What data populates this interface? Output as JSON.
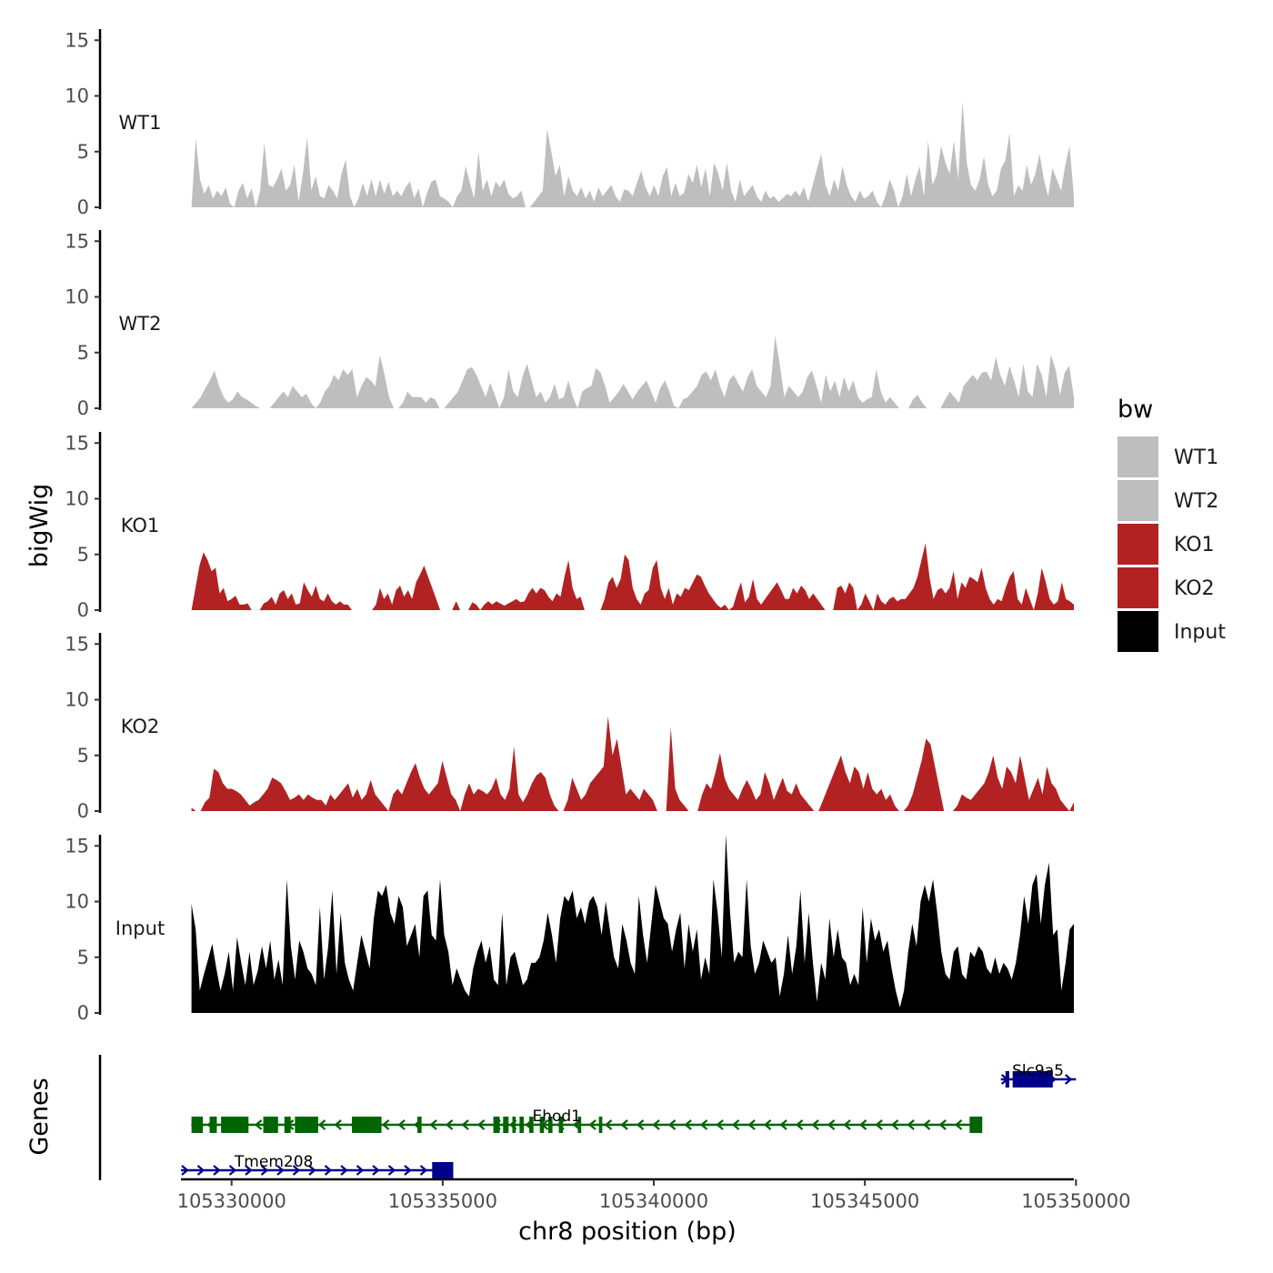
{
  "chart_data": {
    "type": "area",
    "title": "",
    "ylabel": "bigWig",
    "xlabel": "chr8 position (bp)",
    "xlim": [
      105328800,
      105349950
    ],
    "ylim": [
      0,
      16
    ],
    "y_ticks": [
      0,
      5,
      10,
      15
    ],
    "x_ticks": [
      105330000,
      105335000,
      105340000,
      105345000,
      105350000
    ],
    "x_tick_labels": [
      "105330000",
      "105335000",
      "105340000",
      "105345000",
      "105350000"
    ],
    "legend": {
      "title": "bw",
      "entries": [
        {
          "label": "WT1",
          "color": "#bebebe"
        },
        {
          "label": "WT2",
          "color": "#bebebe"
        },
        {
          "label": "KO1",
          "color": "#b22222"
        },
        {
          "label": "KO2",
          "color": "#b22222"
        },
        {
          "label": "Input",
          "color": "#000000"
        }
      ]
    },
    "data_x_start": 105329050,
    "data_x_end": 105349950,
    "series": [
      {
        "name": "WT1",
        "color": "#bebebe",
        "values": [
          0.0,
          6.2,
          2.5,
          1.2,
          2.0,
          0.8,
          1.5,
          1.0,
          1.8,
          0.3,
          0.0,
          1.5,
          2.2,
          0.8,
          1.7,
          0.0,
          1.4,
          5.8,
          2.0,
          1.8,
          2.5,
          3.5,
          1.5,
          2.0,
          3.8,
          0.5,
          3.0,
          6.3,
          1.5,
          2.8,
          1.0,
          0.8,
          2.0,
          1.5,
          0.8,
          3.0,
          4.3,
          1.0,
          0.0,
          0.8,
          2.2,
          1.0,
          2.5,
          1.0,
          2.5,
          1.2,
          2.3,
          1.0,
          1.5,
          1.0,
          1.8,
          2.3,
          0.8,
          1.7,
          0.0,
          1.3,
          2.3,
          2.5,
          1.0,
          0.8,
          0.5,
          0.0,
          1.0,
          1.5,
          3.7,
          2.2,
          0.8,
          5.0,
          1.5,
          2.5,
          1.0,
          2.3,
          1.8,
          2.5,
          1.2,
          0.8,
          1.0,
          1.5,
          0.0,
          0.0,
          0.5,
          1.0,
          1.5,
          7.0,
          5.0,
          2.8,
          3.8,
          1.0,
          2.8,
          1.5,
          1.0,
          1.8,
          0.8,
          1.5,
          0.5,
          1.8,
          1.0,
          1.5,
          2.0,
          1.0,
          0.5,
          1.6,
          1.5,
          1.0,
          2.2,
          3.3,
          1.8,
          1.0,
          2.0,
          1.0,
          2.8,
          3.6,
          1.0,
          2.2,
          1.0,
          1.3,
          3.0,
          2.2,
          3.8,
          1.8,
          3.5,
          1.0,
          4.0,
          3.0,
          1.5,
          4.0,
          1.5,
          0.5,
          2.5,
          1.0,
          1.5,
          2.0,
          1.0,
          0.5,
          1.5,
          0.8,
          1.0,
          0.5,
          0.8,
          1.2,
          1.0,
          1.5,
          1.0,
          1.8,
          0.5,
          2.0,
          3.4,
          4.8,
          2.0,
          1.0,
          2.5,
          1.5,
          3.7,
          2.0,
          1.0,
          0.5,
          1.5,
          0.8,
          1.0,
          1.5,
          0.5,
          0.0,
          1.0,
          2.5,
          1.5,
          0.0,
          1.0,
          3.0,
          1.0,
          2.5,
          3.7,
          1.0,
          6.0,
          2.0,
          3.0,
          5.5,
          4.0,
          3.0,
          6.0,
          2.5,
          9.5,
          4.0,
          2.0,
          1.5,
          2.5,
          4.6,
          2.0,
          1.0,
          1.5,
          3.5,
          4.2,
          6.7,
          1.0,
          2.0,
          1.5,
          3.8,
          2.0,
          3.0,
          4.8,
          2.5,
          1.0,
          3.5,
          2.5,
          1.5,
          3.8,
          5.5,
          1.0
        ]
      },
      {
        "name": "WT2",
        "color": "#bebebe",
        "values": [
          0.0,
          0.5,
          1.0,
          1.8,
          2.5,
          3.4,
          2.0,
          1.0,
          0.5,
          0.8,
          1.5,
          1.0,
          0.8,
          0.5,
          0.2,
          0.0,
          0.0,
          0.0,
          0.5,
          1.0,
          1.5,
          1.0,
          2.0,
          1.5,
          1.0,
          1.3,
          0.5,
          0.0,
          0.5,
          1.5,
          2.0,
          3.0,
          2.5,
          3.5,
          3.0,
          3.5,
          1.0,
          2.0,
          2.8,
          2.5,
          2.0,
          4.8,
          3.0,
          1.0,
          0.0,
          0.0,
          0.5,
          1.5,
          1.0,
          1.0,
          1.0,
          0.5,
          1.0,
          0.8,
          0.0,
          0.0,
          0.5,
          1.0,
          1.5,
          2.5,
          3.5,
          3.7,
          3.0,
          2.0,
          1.0,
          2.3,
          1.2,
          0.0,
          1.0,
          3.5,
          1.5,
          1.0,
          2.8,
          4.0,
          2.5,
          1.0,
          1.5,
          0.5,
          1.0,
          2.2,
          0.8,
          1.0,
          2.5,
          1.0,
          0.0,
          1.5,
          1.8,
          2.0,
          3.6,
          3.2,
          2.0,
          0.5,
          1.0,
          1.5,
          2.2,
          1.5,
          0.8,
          1.5,
          2.0,
          2.5,
          1.5,
          0.5,
          1.8,
          2.5,
          1.5,
          0.2,
          0.0,
          0.8,
          1.0,
          1.5,
          2.0,
          3.0,
          3.3,
          2.5,
          3.5,
          2.0,
          1.0,
          2.5,
          3.0,
          2.2,
          1.5,
          2.8,
          3.5,
          2.0,
          1.5,
          1.0,
          2.0,
          6.5,
          4.0,
          1.0,
          2.0,
          1.5,
          1.0,
          1.5,
          2.8,
          3.4,
          2.0,
          0.5,
          3.0,
          1.5,
          2.5,
          1.0,
          2.8,
          1.5,
          2.5,
          1.0,
          0.5,
          0.8,
          1.0,
          3.5,
          1.5,
          0.5,
          1.0,
          0.5,
          0.0,
          0.0,
          0.0,
          0.8,
          1.2,
          0.5,
          0.0,
          0.0,
          0.0,
          0.0,
          0.8,
          1.5,
          1.0,
          0.5,
          2.0,
          2.5,
          3.0,
          2.5,
          3.2,
          3.3,
          2.5,
          4.6,
          3.0,
          2.0,
          3.8,
          2.5,
          1.0,
          4.0,
          1.5,
          1.0,
          4.0,
          3.0,
          1.0,
          4.8,
          3.5,
          1.2,
          3.2,
          3.8,
          1.0
        ]
      },
      {
        "name": "KO1",
        "color": "#b22222",
        "values": [
          0.0,
          2.0,
          4.0,
          5.2,
          4.5,
          3.5,
          3.8,
          1.5,
          2.0,
          0.8,
          1.0,
          1.3,
          0.5,
          0.5,
          0.6,
          0.0,
          0.0,
          0.0,
          0.6,
          0.8,
          1.2,
          0.5,
          1.5,
          1.8,
          1.0,
          1.5,
          0.5,
          0.6,
          2.5,
          1.8,
          1.2,
          2.2,
          1.0,
          0.8,
          1.5,
          0.8,
          0.5,
          0.8,
          0.5,
          0.5,
          0.0,
          0.0,
          0.0,
          0.0,
          0.0,
          0.0,
          0.5,
          2.0,
          1.0,
          1.5,
          0.5,
          1.8,
          2.2,
          1.2,
          1.8,
          1.0,
          2.5,
          3.2,
          4.0,
          3.0,
          2.0,
          1.0,
          0.0,
          0.0,
          0.0,
          0.0,
          0.8,
          0.0,
          0.0,
          0.0,
          0.7,
          0.5,
          0.0,
          0.5,
          0.8,
          0.5,
          0.8,
          0.6,
          0.4,
          0.6,
          0.8,
          1.0,
          0.7,
          0.8,
          1.5,
          2.0,
          1.5,
          2.0,
          1.8,
          1.2,
          0.8,
          1.5,
          1.2,
          3.0,
          4.5,
          2.0,
          1.0,
          1.2,
          0.0,
          0.0,
          0.0,
          0.0,
          0.0,
          1.0,
          2.5,
          3.0,
          2.0,
          2.8,
          5.0,
          4.5,
          2.0,
          1.0,
          0.5,
          1.5,
          1.8,
          3.8,
          4.5,
          2.0,
          1.0,
          2.0,
          0.5,
          1.5,
          1.2,
          2.0,
          1.8,
          2.5,
          3.2,
          3.0,
          2.2,
          1.5,
          1.0,
          0.5,
          0.2,
          0.5,
          0.0,
          0.3,
          1.5,
          2.5,
          0.7,
          1.2,
          2.8,
          1.0,
          0.5,
          1.0,
          1.5,
          2.0,
          2.5,
          1.8,
          1.0,
          1.0,
          2.0,
          1.5,
          2.2,
          1.8,
          1.0,
          1.5,
          1.0,
          0.5,
          0.0,
          0.0,
          0.0,
          2.0,
          2.2,
          1.5,
          2.5,
          2.0,
          0.0,
          0.5,
          1.5,
          0.8,
          0.0,
          1.5,
          0.8,
          0.5,
          1.0,
          1.2,
          0.8,
          1.0,
          1.0,
          1.5,
          2.0,
          3.0,
          4.5,
          6.0,
          3.0,
          1.0,
          1.8,
          2.0,
          1.5,
          2.0,
          3.5,
          1.0,
          2.5,
          2.0,
          3.0,
          2.8,
          2.5,
          3.8,
          2.0,
          1.0,
          0.5,
          1.0,
          0.8,
          2.0,
          3.0,
          3.5,
          1.0,
          0.5,
          2.0,
          1.0,
          0.0,
          1.5,
          3.8,
          2.5,
          1.0,
          0.5,
          0.8,
          2.5,
          1.0,
          0.8,
          0.5
        ]
      },
      {
        "name": "KO2",
        "color": "#b22222",
        "values": [
          0.3,
          0.0,
          0.0,
          0.8,
          1.2,
          3.8,
          3.5,
          2.5,
          2.0,
          2.0,
          1.8,
          1.5,
          1.0,
          0.5,
          0.8,
          1.0,
          1.5,
          2.0,
          3.0,
          2.8,
          2.5,
          1.8,
          1.0,
          1.2,
          1.5,
          1.0,
          1.5,
          1.2,
          1.0,
          1.0,
          0.5,
          1.5,
          1.0,
          1.5,
          2.0,
          2.5,
          1.2,
          2.0,
          1.0,
          1.5,
          2.8,
          1.5,
          1.0,
          0.5,
          0.0,
          1.5,
          2.0,
          1.5,
          2.5,
          3.5,
          4.3,
          3.0,
          2.0,
          1.5,
          2.0,
          2.5,
          4.5,
          3.0,
          1.5,
          1.0,
          0.0,
          1.5,
          2.5,
          1.5,
          2.0,
          1.8,
          1.5,
          2.0,
          3.0,
          1.5,
          1.0,
          2.0,
          5.8,
          1.5,
          0.8,
          1.5,
          2.5,
          3.2,
          3.5,
          3.0,
          1.5,
          0.5,
          0.0,
          0.0,
          1.0,
          3.0,
          2.0,
          1.0,
          1.5,
          2.5,
          3.0,
          3.5,
          4.0,
          8.5,
          5.0,
          6.5,
          4.0,
          1.5,
          2.0,
          1.5,
          1.0,
          2.0,
          1.5,
          1.0,
          0.0,
          0.0,
          0.0,
          7.5,
          2.0,
          1.0,
          0.5,
          0.0,
          0.0,
          0.0,
          1.5,
          2.5,
          2.0,
          3.5,
          5.2,
          3.0,
          2.0,
          1.5,
          1.0,
          2.0,
          2.8,
          2.0,
          1.0,
          1.5,
          3.5,
          2.5,
          1.0,
          2.0,
          3.0,
          1.8,
          1.5,
          2.5,
          1.5,
          1.0,
          0.5,
          0.0,
          0.0,
          1.0,
          2.0,
          3.0,
          4.0,
          5.0,
          3.5,
          2.5,
          4.0,
          3.5,
          2.0,
          3.5,
          2.0,
          1.5,
          2.0,
          1.0,
          1.5,
          0.5,
          0.0,
          0.0,
          0.5,
          1.5,
          3.0,
          4.5,
          6.5,
          6.0,
          4.0,
          2.0,
          0.0,
          0.0,
          0.0,
          0.5,
          1.5,
          1.2,
          1.0,
          1.5,
          2.0,
          2.5,
          3.5,
          5.0,
          3.0,
          2.0,
          4.0,
          3.5,
          2.5,
          5.0,
          3.0,
          1.0,
          2.0,
          3.0,
          1.5,
          4.0,
          2.5,
          2.0,
          1.0,
          0.5,
          0.0,
          0.8
        ]
      },
      {
        "name": "Input",
        "color": "#000000",
        "values": [
          9.8,
          7.5,
          2.0,
          3.5,
          4.8,
          6.2,
          4.0,
          2.0,
          3.5,
          5.5,
          2.0,
          6.8,
          4.5,
          2.5,
          5.5,
          2.5,
          3.8,
          6.0,
          4.0,
          6.5,
          3.0,
          4.8,
          2.5,
          12.0,
          6.0,
          3.0,
          6.5,
          5.5,
          4.0,
          3.5,
          2.5,
          9.5,
          3.0,
          6.0,
          11.0,
          3.5,
          9.0,
          4.5,
          3.0,
          2.0,
          4.5,
          7.0,
          5.5,
          4.0,
          8.5,
          11.0,
          10.5,
          11.5,
          9.0,
          8.0,
          10.5,
          9.5,
          6.0,
          7.0,
          8.0,
          5.0,
          10.5,
          11.0,
          7.0,
          6.5,
          12.0,
          7.0,
          5.5,
          2.5,
          4.0,
          3.0,
          2.0,
          1.5,
          4.0,
          5.5,
          6.5,
          4.5,
          6.0,
          3.0,
          2.5,
          9.0,
          2.5,
          5.0,
          5.5,
          4.0,
          2.5,
          3.0,
          4.5,
          4.5,
          5.0,
          6.5,
          9.0,
          7.0,
          4.5,
          8.5,
          10.5,
          10.0,
          11.0,
          8.5,
          9.5,
          8.0,
          10.0,
          10.5,
          9.5,
          7.0,
          10.0,
          7.5,
          5.0,
          4.0,
          8.0,
          6.5,
          4.5,
          3.5,
          10.5,
          7.0,
          4.5,
          8.0,
          11.5,
          10.0,
          8.5,
          8.0,
          5.5,
          7.5,
          9.0,
          4.0,
          8.0,
          5.5,
          7.5,
          3.0,
          5.0,
          3.5,
          12.0,
          9.0,
          5.0,
          16.0,
          9.0,
          4.5,
          5.5,
          5.0,
          12.0,
          6.0,
          3.5,
          4.5,
          6.5,
          5.5,
          4.5,
          5.0,
          1.5,
          3.5,
          7.0,
          3.5,
          6.0,
          11.0,
          4.5,
          9.0,
          4.5,
          1.0,
          4.5,
          3.0,
          8.5,
          5.0,
          7.5,
          5.0,
          4.5,
          2.5,
          3.5,
          2.5,
          9.5,
          4.5,
          8.5,
          6.5,
          7.5,
          5.5,
          6.5,
          4.0,
          2.0,
          0.5,
          2.0,
          5.5,
          8.0,
          6.0,
          10.0,
          11.5,
          10.0,
          12.0,
          9.0,
          5.5,
          3.5,
          3.0,
          5.5,
          6.0,
          3.5,
          3.0,
          5.5,
          5.0,
          6.0,
          5.5,
          4.0,
          3.5,
          5.0,
          3.5,
          4.5,
          4.0,
          3.0,
          4.5,
          7.0,
          10.5,
          8.0,
          11.5,
          12.5,
          8.0,
          11.5,
          13.5,
          7.0,
          7.5,
          2.0,
          4.5,
          7.5,
          8.0
        ]
      }
    ],
    "genes_track": {
      "ylabel": "Genes",
      "genes": [
        {
          "name": "Slc9a5",
          "color": "#00008b",
          "strand": "+",
          "start": 105348220,
          "end": 105350000,
          "exons": [
            [
              105348330,
              105348420
            ],
            [
              105348500,
              105349450
            ]
          ]
        },
        {
          "name": "Ehod1",
          "color": "#006400",
          "strand": "-",
          "start": 105329050,
          "end": 105347780,
          "exons": [
            [
              105329050,
              105329320
            ],
            [
              105329480,
              105329650
            ],
            [
              105329750,
              105330400
            ],
            [
              105330750,
              105331100
            ],
            [
              105331250,
              105331400
            ],
            [
              105331500,
              105332050
            ],
            [
              105332850,
              105333550
            ],
            [
              105334400,
              105334500
            ],
            [
              105336200,
              105336350
            ],
            [
              105336430,
              105336560
            ],
            [
              105336650,
              105336730
            ],
            [
              105336820,
              105336920
            ],
            [
              105337050,
              105337150
            ],
            [
              105337300,
              105337400
            ],
            [
              105337500,
              105337600
            ],
            [
              105337750,
              105337850
            ],
            [
              105338200,
              105338280
            ],
            [
              105338700,
              105338780
            ],
            [
              105347480,
              105347780
            ]
          ]
        },
        {
          "name": "Tmem208",
          "color": "#00008b",
          "strand": "+",
          "start": 105328800,
          "end": 105335250,
          "exons": [
            [
              105334750,
              105335250
            ]
          ]
        }
      ]
    }
  }
}
